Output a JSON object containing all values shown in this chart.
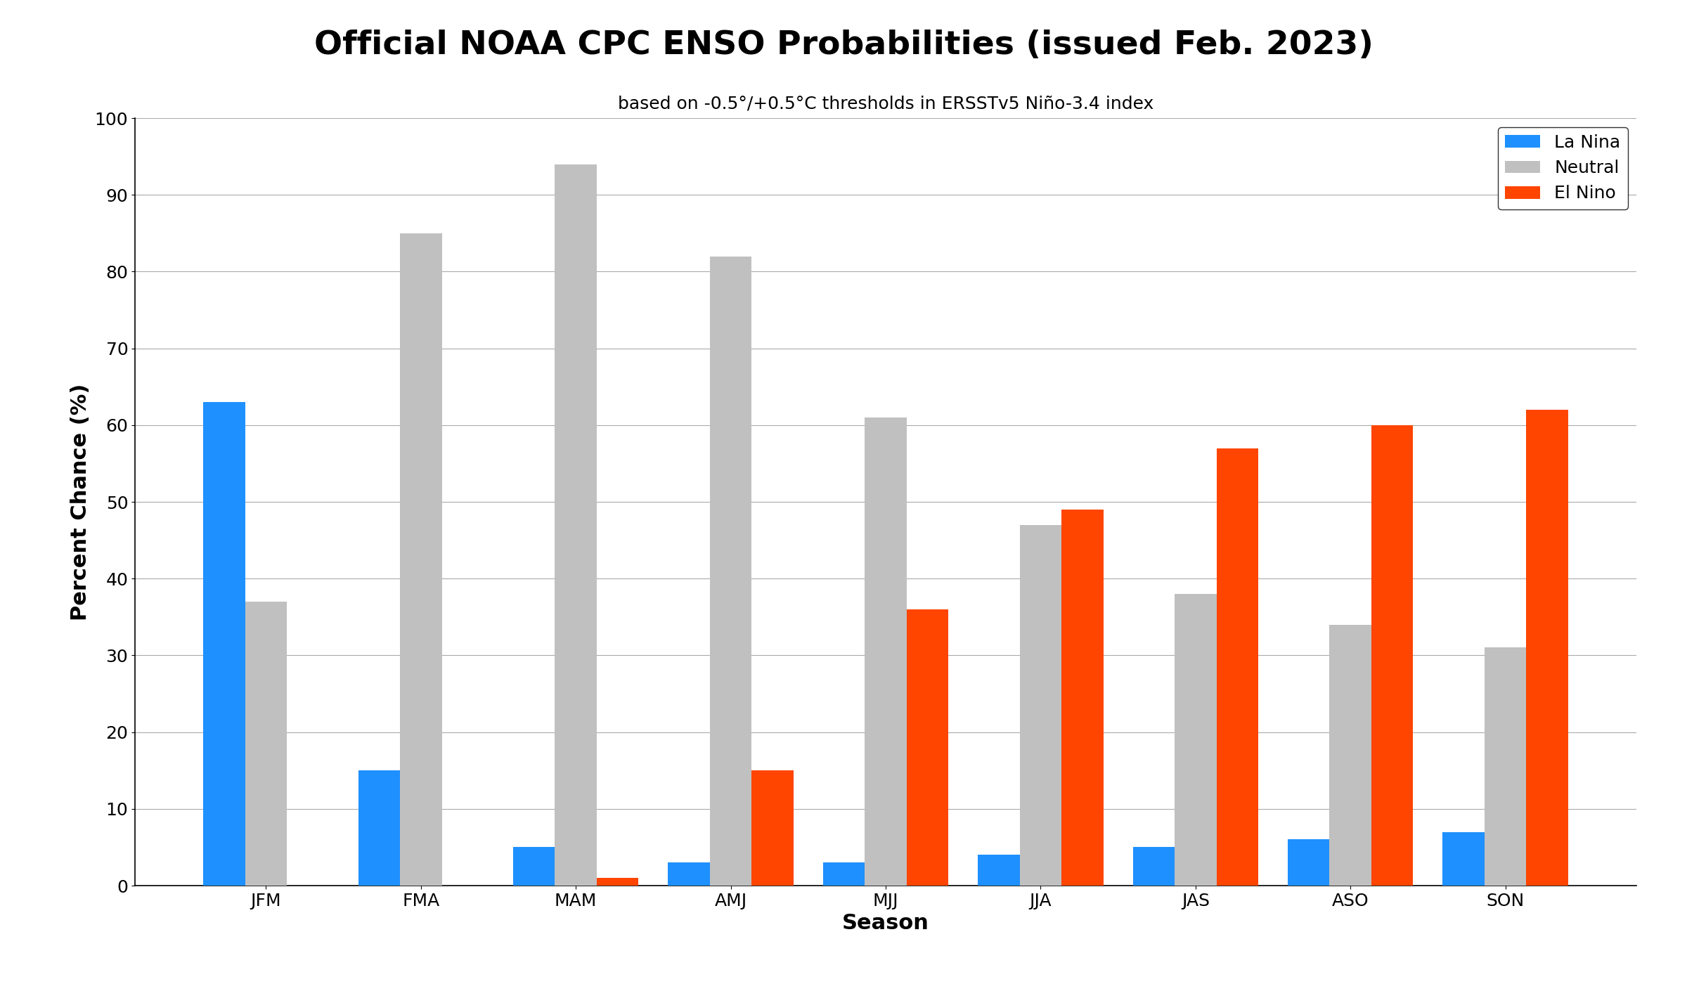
{
  "title": "Official NOAA CPC ENSO Probabilities (issued Feb. 2023)",
  "subtitle": "based on -0.5°/+0.5°C thresholds in ERSSTv5 Niño-3.4 index",
  "xlabel": "Season",
  "ylabel": "Percent Chance (%)",
  "seasons": [
    "JFM",
    "FMA",
    "MAM",
    "AMJ",
    "MJJ",
    "JJA",
    "JAS",
    "ASO",
    "SON"
  ],
  "la_nina": [
    63,
    15,
    5,
    3,
    3,
    4,
    5,
    6,
    7
  ],
  "neutral": [
    37,
    85,
    94,
    82,
    61,
    47,
    38,
    34,
    31
  ],
  "el_nino": [
    0,
    0,
    1,
    15,
    36,
    49,
    57,
    60,
    62
  ],
  "colors": {
    "la_nina": "#1E90FF",
    "neutral": "#C0C0C0",
    "el_nino": "#FF4500"
  },
  "ylim": [
    0,
    100
  ],
  "yticks": [
    0,
    10,
    20,
    30,
    40,
    50,
    60,
    70,
    80,
    90,
    100
  ],
  "legend_labels": [
    "La Nina",
    "Neutral",
    "El Nino"
  ],
  "title_fontsize": 34,
  "subtitle_fontsize": 18,
  "axis_label_fontsize": 22,
  "tick_fontsize": 18,
  "legend_fontsize": 18,
  "bar_width": 0.27,
  "background_color": "#ffffff"
}
